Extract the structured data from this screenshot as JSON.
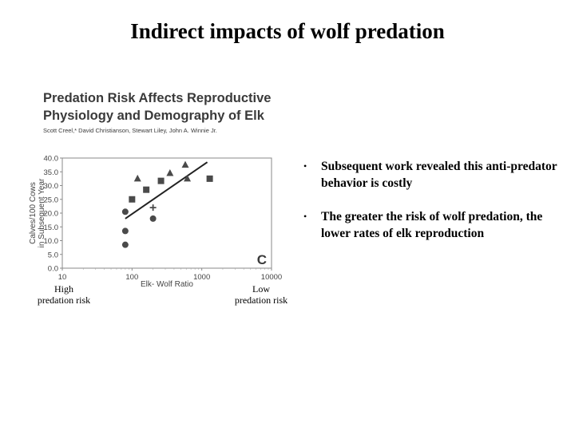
{
  "slide": {
    "title": "Indirect impacts of wolf predation"
  },
  "paper": {
    "title": "Predation Risk Affects Reproductive Physiology and Demography of Elk",
    "authors": "Scott Creel,* David Christianson, Stewart Liley, John A. Winnie Jr."
  },
  "chart_data": {
    "type": "scatter",
    "panel_label": "C",
    "xlabel": "Elk- Wolf Ratio",
    "ylabel": "Calves/100 Cows in Subsequent Year",
    "xscale": "log",
    "xlim": [
      10,
      10000
    ],
    "ylim": [
      0,
      40
    ],
    "xticks": [
      10,
      100,
      1000,
      10000
    ],
    "yticks": [
      0,
      5,
      10,
      15,
      20,
      25,
      30,
      35,
      40
    ],
    "ytick_labels": [
      "0.0",
      "5.0",
      "10.0",
      "15.0",
      "20.0",
      "25.0",
      "30.0",
      "35.0",
      "40.0"
    ],
    "grid": false,
    "series": [
      {
        "marker": "circle",
        "x": [
          80,
          80,
          80,
          200
        ],
        "y": [
          20.5,
          13.5,
          8.5,
          18
        ]
      },
      {
        "marker": "square",
        "x": [
          100,
          160,
          260,
          1300
        ],
        "y": [
          25,
          28.5,
          31.7,
          32.5
        ]
      },
      {
        "marker": "triangle",
        "x": [
          120,
          350,
          580,
          620
        ],
        "y": [
          32.5,
          34.5,
          37.5,
          32.5
        ]
      },
      {
        "marker": "cross",
        "x": [
          200
        ],
        "y": [
          22
        ]
      }
    ],
    "trendline": {
      "x": [
        80,
        1200
      ],
      "y": [
        18,
        38.5
      ]
    },
    "color": "#4a4a4a"
  },
  "annotations": {
    "high_risk": "High predation risk",
    "low_risk": "Low predation risk"
  },
  "bullets": [
    "Subsequent work revealed this anti-predator behavior is costly",
    "The greater the risk of wolf predation, the lower rates of elk reproduction"
  ]
}
